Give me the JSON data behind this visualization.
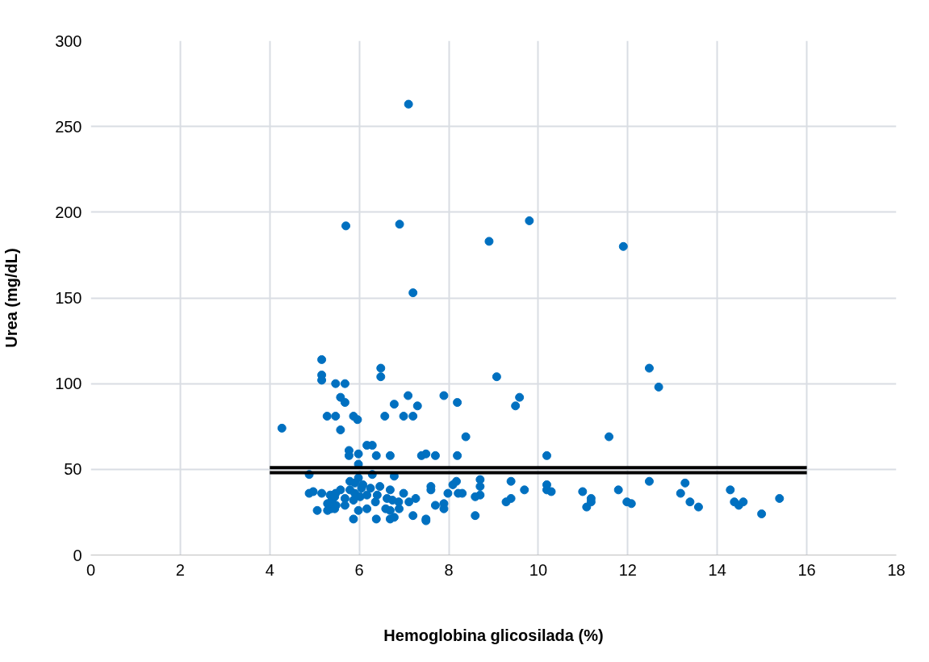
{
  "chart_data": {
    "type": "scatter",
    "xlabel": "Hemoglobina glicosilada (%)",
    "ylabel": "Urea (mg/dL)",
    "xlim": [
      0,
      18
    ],
    "ylim": [
      0,
      300
    ],
    "xticks": [
      0,
      2,
      4,
      6,
      8,
      10,
      12,
      14,
      16,
      18
    ],
    "yticks": [
      0,
      50,
      100,
      150,
      200,
      250,
      300
    ],
    "grid": true,
    "marker": "circle",
    "series": [
      {
        "color": "#0070c0",
        "x": [
          7.1,
          5.7,
          6.9,
          9.8,
          8.9,
          11.9,
          7.2,
          5.16,
          5.16,
          5.16,
          5.47,
          5.68,
          5.58,
          5.68,
          5.28,
          5.47,
          5.87,
          5.96,
          4.27,
          5.58,
          6.48,
          6.48,
          6.78,
          7.09,
          7.3,
          6.57,
          6.99,
          7.2,
          7.89,
          8.19,
          8.38,
          9.07,
          5.77,
          5.77,
          5.98,
          5.98,
          6.17,
          6.29,
          6.38,
          6.69,
          7.39,
          7.49,
          7.7,
          8.19,
          4.88,
          6.29,
          6.78,
          5.79,
          5.9,
          6.08,
          6.25,
          6.46,
          6.69,
          6.99,
          7.6,
          7.6,
          7.98,
          8.17,
          8.09,
          8.21,
          8.3,
          8.7,
          8.7,
          8.7,
          8.59,
          8.59,
          4.88,
          4.97,
          5.16,
          5.35,
          5.47,
          5.58,
          5.39,
          5.45,
          5.68,
          5.79,
          5.9,
          5.87,
          6.02,
          6.17,
          6.4,
          6.62,
          6.74,
          6.88,
          7.11,
          7.26,
          5.29,
          5.48,
          5.37,
          5.29,
          5.45,
          5.06,
          5.68,
          5.98,
          6.17,
          6.36,
          6.59,
          6.69,
          6.89,
          7.2,
          7.7,
          7.89,
          7.89,
          5.87,
          6.38,
          6.69,
          6.78,
          7.49,
          7.49,
          5.98,
          6.05,
          9.58,
          9.49,
          10.19,
          11.58,
          12.48,
          12.69,
          9.39,
          9.69,
          9.28,
          9.39,
          10.19,
          10.19,
          10.29,
          10.99,
          11.18,
          11.18,
          11.08,
          11.79,
          11.98,
          12.08,
          12.48,
          13.28,
          13.18,
          13.39,
          13.58,
          14.29,
          14.38,
          14.48,
          14.58,
          14.99,
          15.39
        ],
        "values": [
          263,
          192,
          193,
          195,
          183,
          180,
          153,
          114,
          105,
          102,
          100,
          100,
          92,
          89,
          81,
          81,
          81,
          79,
          74,
          73,
          109,
          104,
          88,
          93,
          87,
          81,
          81,
          81,
          93,
          89,
          69,
          104,
          61,
          58,
          59,
          53,
          64,
          64,
          58,
          58,
          58,
          59,
          58,
          58,
          47,
          47,
          46,
          43,
          42,
          41,
          39,
          40,
          38,
          36,
          40,
          38,
          36,
          43,
          41,
          36,
          36,
          44,
          40,
          35,
          34,
          23,
          36,
          37,
          36,
          35,
          36,
          38,
          32,
          34,
          33,
          38,
          36,
          32,
          34,
          35,
          35,
          33,
          32,
          31,
          31,
          33,
          30,
          29,
          27,
          26,
          27,
          26,
          29,
          26,
          27,
          31,
          27,
          26,
          27,
          23,
          29,
          30,
          27,
          21,
          21,
          21,
          22,
          21,
          20,
          45,
          39,
          92,
          87,
          58,
          69,
          109,
          98,
          43,
          38,
          31,
          33,
          41,
          38,
          37,
          37,
          33,
          31,
          28,
          38,
          31,
          30,
          43,
          42,
          36,
          31,
          28,
          38,
          31,
          29,
          31,
          24,
          33
        ]
      },
      {
        "type": "line",
        "marker": "none",
        "color": "#000000",
        "x": [
          4,
          16
        ],
        "values": [
          51,
          51
        ]
      },
      {
        "type": "line",
        "marker": "none",
        "color": "#000000",
        "x": [
          4,
          16
        ],
        "values": [
          48,
          48
        ]
      }
    ]
  }
}
